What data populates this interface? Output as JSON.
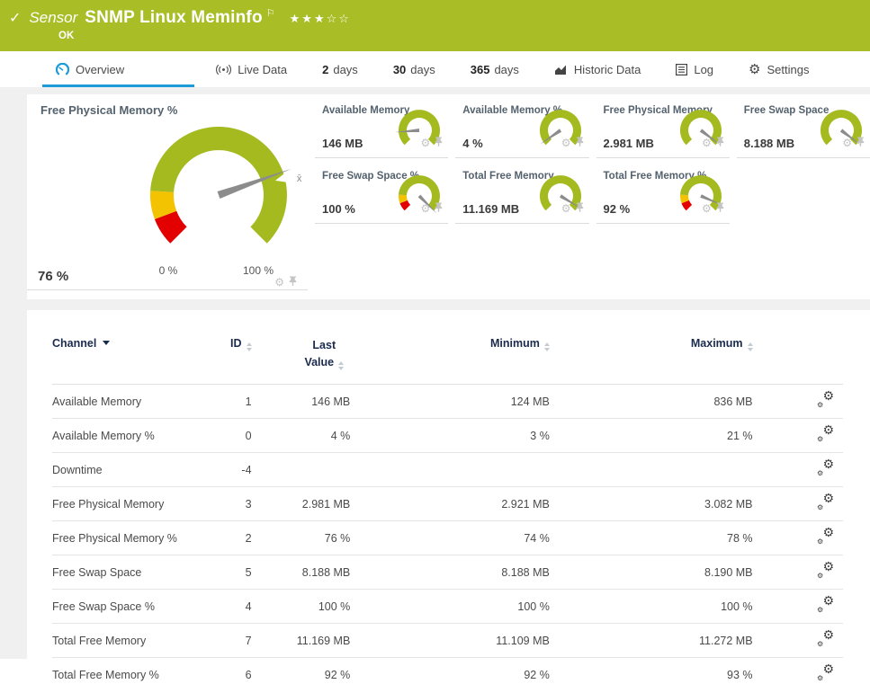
{
  "header": {
    "check_icon": "✓",
    "kind": "Sensor",
    "title": "SNMP Linux Meminfo",
    "flag_icon": "⚐",
    "stars_filled": "★★★",
    "stars_empty": "☆☆",
    "status": "OK"
  },
  "tabs": [
    {
      "label": "Overview",
      "icon": "gauge-icon",
      "active": true
    },
    {
      "label": "Live Data",
      "icon": "live-icon"
    },
    {
      "bold": "2",
      "label": "days"
    },
    {
      "bold": "30",
      "label": "days"
    },
    {
      "bold": "365",
      "label": "days"
    },
    {
      "label": "Historic Data",
      "icon": "historic-icon"
    },
    {
      "label": "Log",
      "icon": "log-icon"
    },
    {
      "label": "Settings",
      "icon": "settings-icon"
    }
  ],
  "colors": {
    "brand_green": "#A9BE26",
    "accent_blue": "#1D9BD8",
    "gauge_green": "#A4BA1E",
    "gauge_yellow": "#F3C200",
    "gauge_red": "#E30000",
    "needle_gray": "#8C8C8C"
  },
  "gauges": {
    "main": {
      "label": "Free Physical Memory %",
      "value": "76 %",
      "percent": 76,
      "min_label": "0 %",
      "max_label": "100 %",
      "avg_label": "x̄",
      "avg_percent": 78,
      "segments": [
        {
          "to": 9,
          "color": "#E30000"
        },
        {
          "to": 18,
          "color": "#F3C200"
        },
        {
          "to": 100,
          "color": "#A4BA1E"
        }
      ]
    },
    "small": [
      {
        "label": "Available Memory",
        "value": "146 MB",
        "percent": 15,
        "segments": [
          {
            "to": 100,
            "color": "#A4BA1E"
          }
        ]
      },
      {
        "label": "Available Memory %",
        "value": "4 %",
        "percent": 4,
        "segments": [
          {
            "to": 100,
            "color": "#A4BA1E"
          }
        ]
      },
      {
        "label": "Free Physical Memory",
        "value": "2.981 MB",
        "percent": 97,
        "segments": [
          {
            "to": 100,
            "color": "#A4BA1E"
          }
        ]
      },
      {
        "label": "Free Swap Space",
        "value": "8.188 MB",
        "percent": 97,
        "segments": [
          {
            "to": 100,
            "color": "#A4BA1E"
          }
        ]
      },
      {
        "label": "Free Swap Space %",
        "value": "100 %",
        "percent": 100,
        "segments": [
          {
            "to": 9,
            "color": "#E30000"
          },
          {
            "to": 18,
            "color": "#F3C200"
          },
          {
            "to": 100,
            "color": "#A4BA1E"
          }
        ]
      },
      {
        "label": "Total Free Memory",
        "value": "11.169 MB",
        "percent": 95,
        "segments": [
          {
            "to": 100,
            "color": "#A4BA1E"
          }
        ]
      },
      {
        "label": "Total Free Memory %",
        "value": "92 %",
        "percent": 92,
        "segments": [
          {
            "to": 9,
            "color": "#E30000"
          },
          {
            "to": 18,
            "color": "#F3C200"
          },
          {
            "to": 100,
            "color": "#A4BA1E"
          }
        ]
      }
    ]
  },
  "table": {
    "columns": [
      {
        "label": "Channel"
      },
      {
        "label": "ID"
      },
      {
        "label": "Last Value"
      },
      {
        "label": "Minimum"
      },
      {
        "label": "Maximum"
      },
      {
        "label": ""
      }
    ],
    "rows": [
      {
        "channel": "Available Memory",
        "id": "1",
        "last": "146 MB",
        "min": "124 MB",
        "max": "836 MB"
      },
      {
        "channel": "Available Memory %",
        "id": "0",
        "last": "4 %",
        "min": "3 %",
        "max": "21 %"
      },
      {
        "channel": "Downtime",
        "id": "-4",
        "last": "",
        "min": "",
        "max": ""
      },
      {
        "channel": "Free Physical Memory",
        "id": "3",
        "last": "2.981 MB",
        "min": "2.921 MB",
        "max": "3.082 MB"
      },
      {
        "channel": "Free Physical Memory %",
        "id": "2",
        "last": "76 %",
        "min": "74 %",
        "max": "78 %"
      },
      {
        "channel": "Free Swap Space",
        "id": "5",
        "last": "8.188 MB",
        "min": "8.188 MB",
        "max": "8.190 MB"
      },
      {
        "channel": "Free Swap Space %",
        "id": "4",
        "last": "100 %",
        "min": "100 %",
        "max": "100 %"
      },
      {
        "channel": "Total Free Memory",
        "id": "7",
        "last": "11.169 MB",
        "min": "11.109 MB",
        "max": "11.272 MB"
      },
      {
        "channel": "Total Free Memory %",
        "id": "6",
        "last": "92 %",
        "min": "92 %",
        "max": "93 %"
      }
    ]
  }
}
